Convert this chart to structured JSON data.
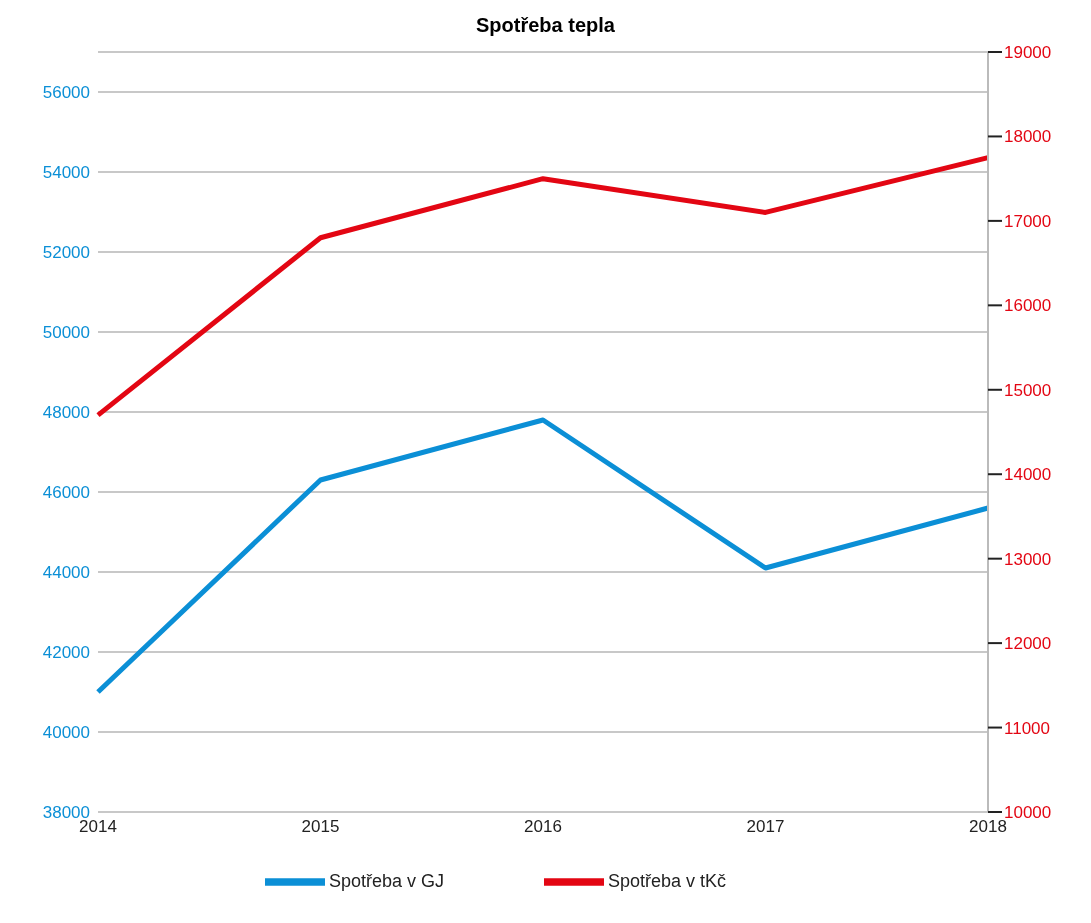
{
  "chart_data": {
    "type": "line",
    "title": "Spotřeba tepla",
    "categories": [
      "2014",
      "2015",
      "2016",
      "2017",
      "2018"
    ],
    "series": [
      {
        "name": "Spotřeba v GJ",
        "color": "#0b8fd6",
        "values": [
          41000,
          46300,
          47800,
          44100,
          45600
        ]
      },
      {
        "name": "Spotřeba v tKč",
        "color": "#e30613",
        "values": [
          14700,
          16800,
          17500,
          17100,
          17750
        ],
        "axis": "y2"
      }
    ],
    "ylim": [
      38000,
      57000
    ],
    "yticks": [
      38000,
      40000,
      42000,
      44000,
      46000,
      48000,
      50000,
      52000,
      54000,
      56000
    ],
    "y2lim": [
      10000,
      19000
    ],
    "y2ticks": [
      10000,
      11000,
      12000,
      13000,
      14000,
      15000,
      16000,
      17000,
      18000,
      19000
    ],
    "grid": "y",
    "legend": "bottom",
    "marker": "none",
    "line_style": "solid"
  }
}
